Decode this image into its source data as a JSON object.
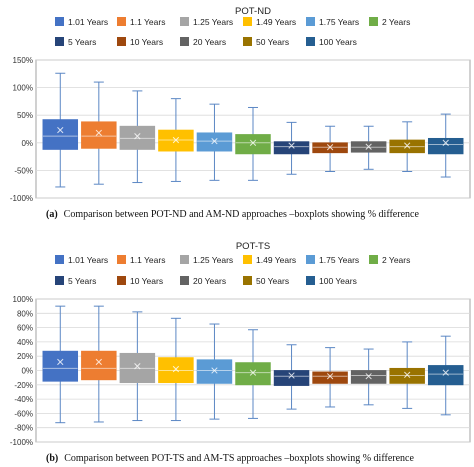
{
  "colors": {
    "box_1_01": "#4472c4",
    "box_1_1": "#ed7d31",
    "box_1_25": "#a5a5a5",
    "box_1_49": "#ffc000",
    "box_1_75": "#5b9bd5",
    "box_2": "#70ad47",
    "box_5": "#264478",
    "box_10": "#9e480e",
    "box_20": "#636363",
    "box_50": "#997300",
    "box_100": "#255e91",
    "whisker": "#5b87c4",
    "grid": "#d9d9d9",
    "frame": "#8c8c8c"
  },
  "chart_data": [
    {
      "type": "boxplot",
      "title": "POT-ND",
      "caption_label": "(a)",
      "caption_text": "Comparison between POT-ND and AM-ND approaches –boxplots showing % difference",
      "yunit": "%",
      "ylim": [
        -100,
        150
      ],
      "yticks": [
        -100,
        -50,
        0,
        50,
        100,
        150
      ],
      "tick_labels": [
        "-100%",
        "-50%",
        "0%",
        "50%",
        "100%",
        "150%"
      ],
      "grid": true,
      "legend_position": "top",
      "legend_rows": [
        [
          "1.01 Years",
          "1.1 Years",
          "1.25 Years",
          "1.49 Years",
          "1.75 Years",
          "2 Years"
        ],
        [
          "5 Years",
          "10 Years",
          "20 Years",
          "50 Years",
          "100 Years"
        ]
      ],
      "series": [
        {
          "name": "1.01 Years",
          "min": -80,
          "q1": -12,
          "median": 12,
          "mean": 23,
          "q3": 42,
          "max": 126
        },
        {
          "name": "1.1 Years",
          "min": -75,
          "q1": -10,
          "median": 12,
          "mean": 18,
          "q3": 38,
          "max": 110
        },
        {
          "name": "1.25 Years",
          "min": -72,
          "q1": -12,
          "median": 8,
          "mean": 12,
          "q3": 30,
          "max": 94
        },
        {
          "name": "1.49 Years",
          "min": -70,
          "q1": -15,
          "median": 5,
          "mean": 5,
          "q3": 23,
          "max": 80
        },
        {
          "name": "1.75 Years",
          "min": -68,
          "q1": -15,
          "median": 3,
          "mean": 3,
          "q3": 18,
          "max": 70
        },
        {
          "name": "2 Years",
          "min": -68,
          "q1": -20,
          "median": 0,
          "mean": 0,
          "q3": 15,
          "max": 64
        },
        {
          "name": "5 Years",
          "min": -57,
          "q1": -20,
          "median": -7,
          "mean": -5,
          "q3": 2,
          "max": 37
        },
        {
          "name": "10 Years",
          "min": -52,
          "q1": -18,
          "median": -8,
          "mean": -8,
          "q3": 0,
          "max": 30
        },
        {
          "name": "20 Years",
          "min": -48,
          "q1": -17,
          "median": -8,
          "mean": -7,
          "q3": 2,
          "max": 30
        },
        {
          "name": "50 Years",
          "min": -52,
          "q1": -18,
          "median": -7,
          "mean": -5,
          "q3": 5,
          "max": 38
        },
        {
          "name": "100 Years",
          "min": -62,
          "q1": -20,
          "median": -3,
          "mean": 0,
          "q3": 8,
          "max": 52
        }
      ]
    },
    {
      "type": "boxplot",
      "title": "POT-TS",
      "caption_label": "(b)",
      "caption_text": "Comparison between POT-TS and AM-TS approaches –boxplots showing % difference",
      "yunit": "%",
      "ylim": [
        -100,
        100
      ],
      "yticks": [
        -100,
        -80,
        -60,
        -40,
        -20,
        0,
        20,
        40,
        60,
        80,
        100
      ],
      "tick_labels": [
        "-100%",
        "-80%",
        "-60%",
        "-40%",
        "-20%",
        "0%",
        "20%",
        "40%",
        "60%",
        "80%",
        "100%"
      ],
      "grid": true,
      "legend_position": "top",
      "legend_rows": [
        [
          "1.01 Years",
          "1.1 Years",
          "1.25 Years",
          "1.49 Years",
          "1.75 Years",
          "2 Years"
        ],
        [
          "5 Years",
          "10 Years",
          "20 Years",
          "50 Years",
          "100 Years"
        ]
      ],
      "series": [
        {
          "name": "1.01 Years",
          "min": -73,
          "q1": -15,
          "median": 3,
          "mean": 12,
          "q3": 27,
          "max": 90
        },
        {
          "name": "1.1 Years",
          "min": -72,
          "q1": -13,
          "median": 3,
          "mean": 12,
          "q3": 27,
          "max": 90
        },
        {
          "name": "1.25 Years",
          "min": -70,
          "q1": -17,
          "median": 3,
          "mean": 6,
          "q3": 24,
          "max": 82
        },
        {
          "name": "1.49 Years",
          "min": -70,
          "q1": -17,
          "median": 0,
          "mean": 2,
          "q3": 18,
          "max": 73
        },
        {
          "name": "1.75 Years",
          "min": -68,
          "q1": -18,
          "median": 0,
          "mean": 0,
          "q3": 15,
          "max": 65
        },
        {
          "name": "2 Years",
          "min": -67,
          "q1": -20,
          "median": -3,
          "mean": -3,
          "q3": 11,
          "max": 57
        },
        {
          "name": "5 Years",
          "min": -54,
          "q1": -21,
          "median": -8,
          "mean": -7,
          "q3": 0,
          "max": 36
        },
        {
          "name": "10 Years",
          "min": -51,
          "q1": -18,
          "median": -8,
          "mean": -8,
          "q3": -2,
          "max": 32
        },
        {
          "name": "20 Years",
          "min": -48,
          "q1": -18,
          "median": -7,
          "mean": -8,
          "q3": 0,
          "max": 30
        },
        {
          "name": "50 Years",
          "min": -53,
          "q1": -18,
          "median": -7,
          "mean": -6,
          "q3": 3,
          "max": 40
        },
        {
          "name": "100 Years",
          "min": -62,
          "q1": -20,
          "median": -5,
          "mean": -3,
          "q3": 7,
          "max": 48
        }
      ]
    }
  ]
}
